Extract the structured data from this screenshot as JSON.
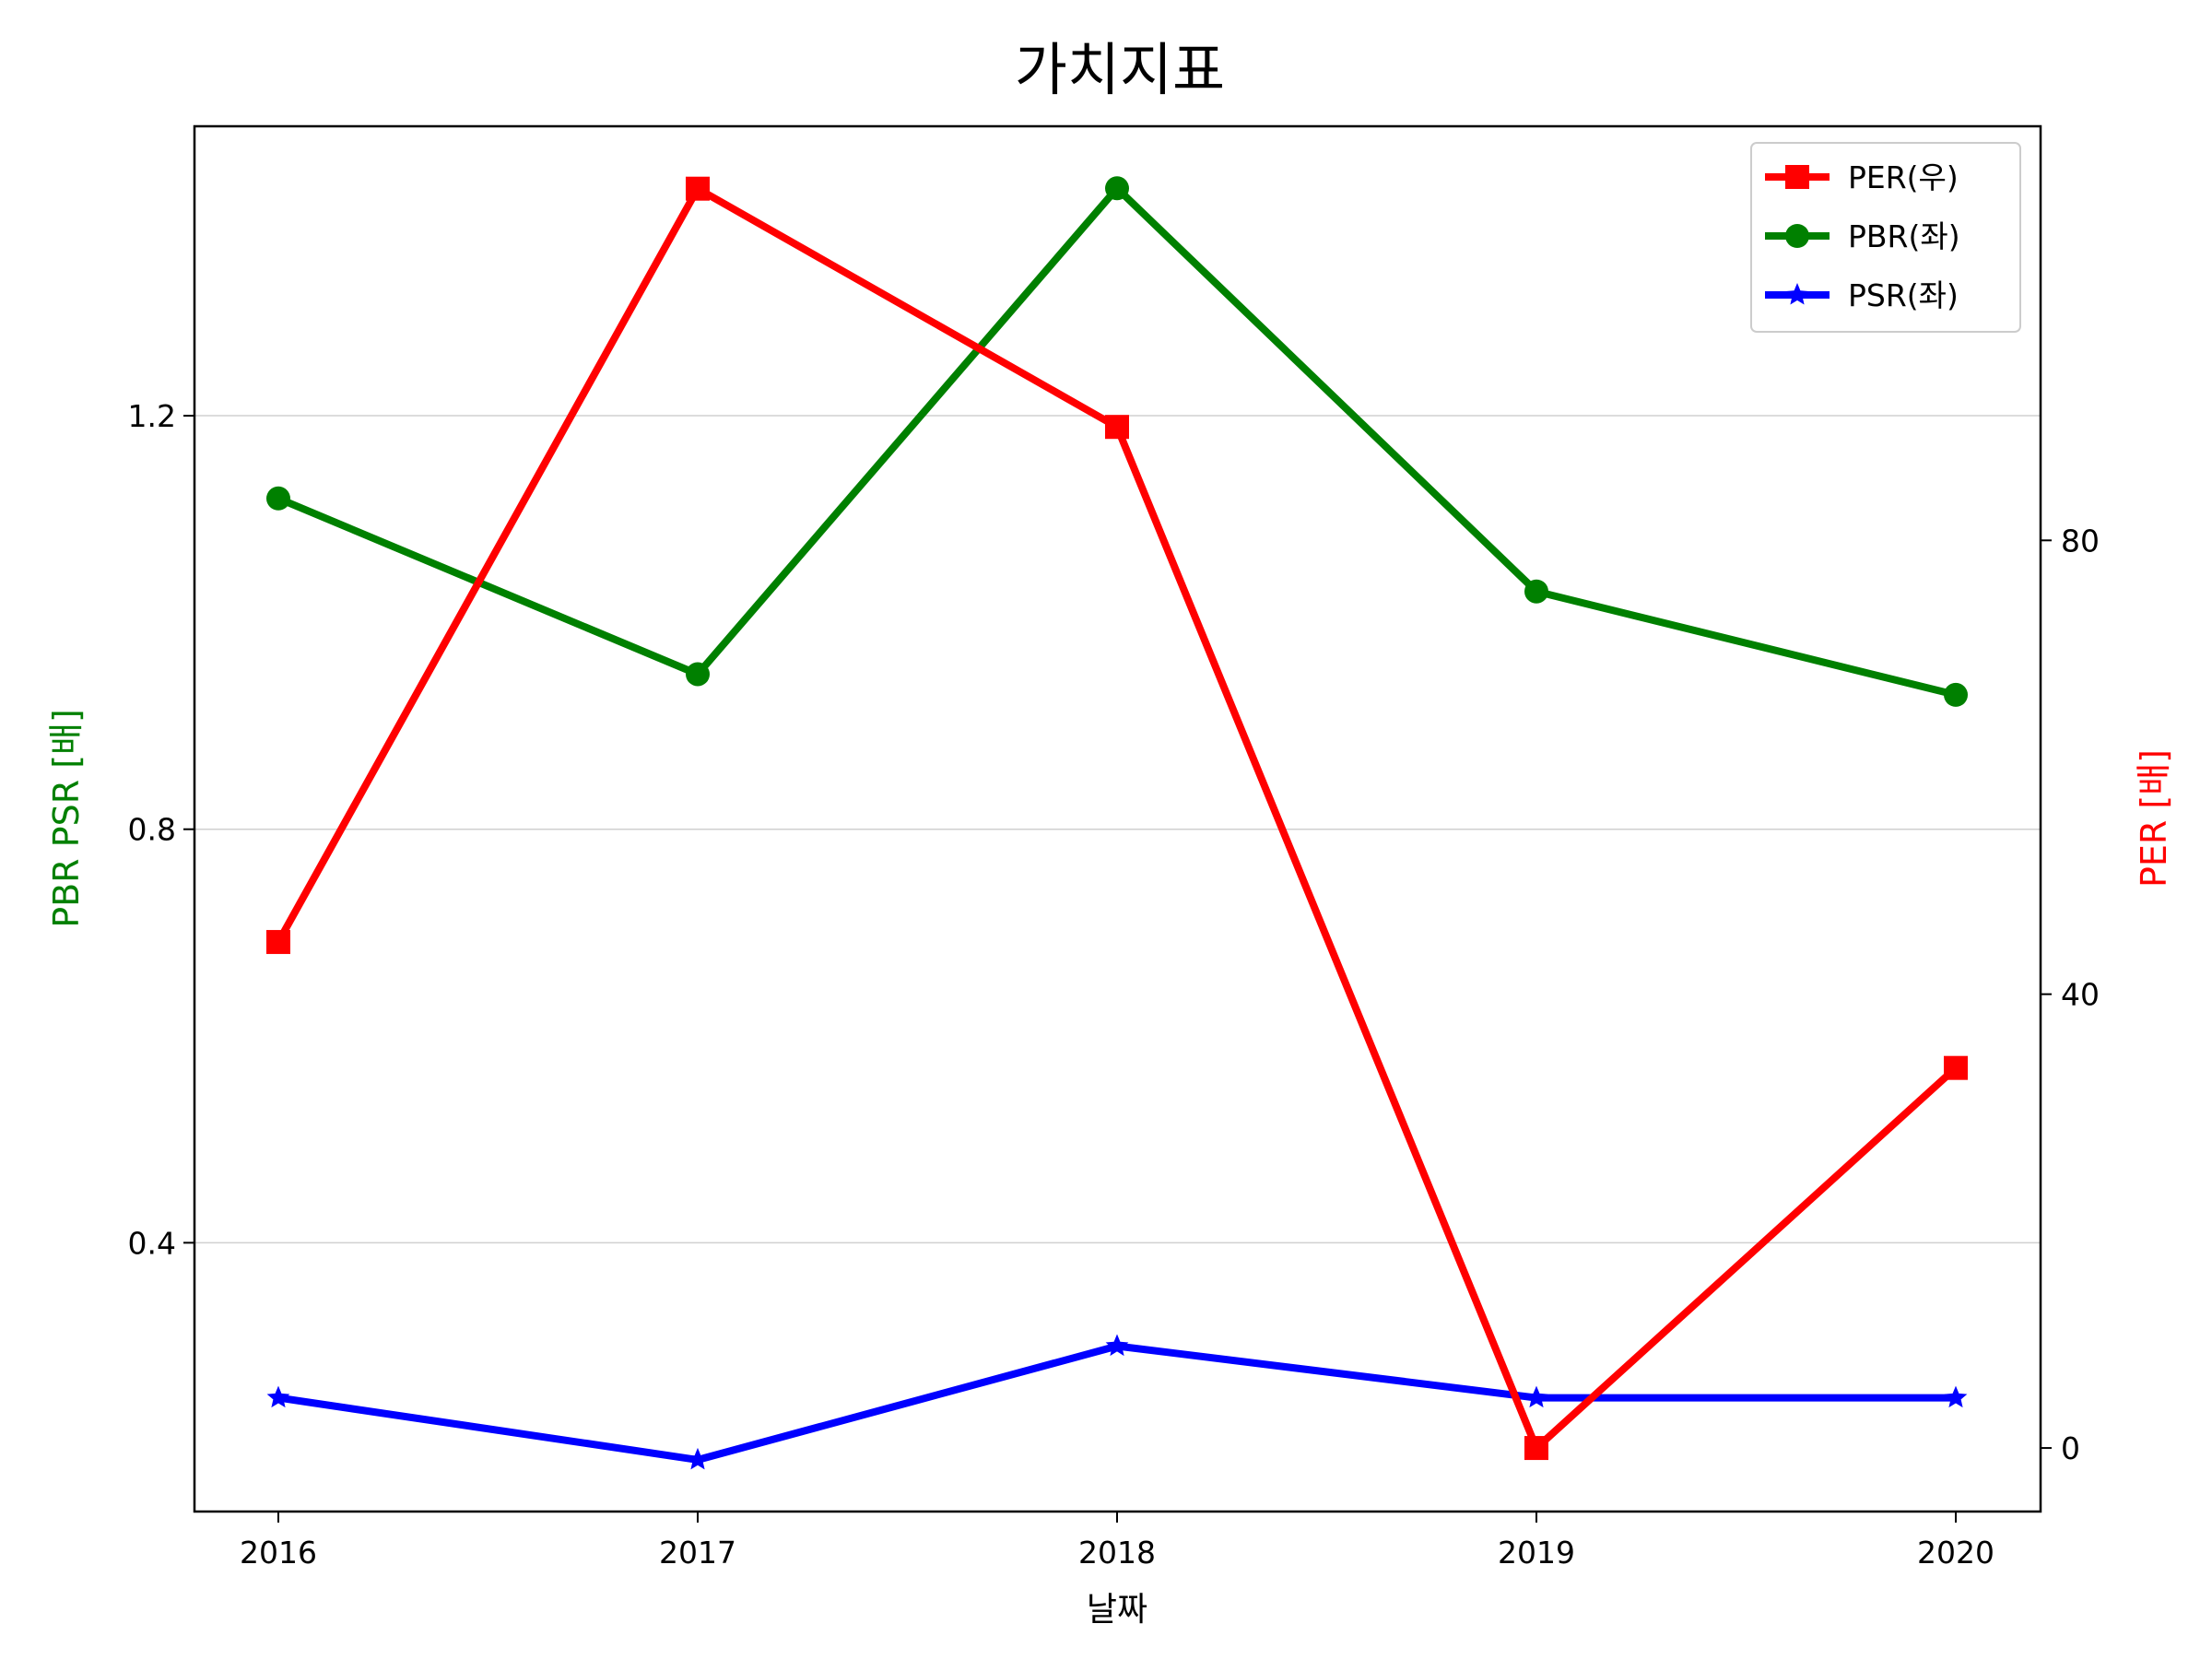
{
  "chart_data": {
    "type": "line",
    "title": "가치지표",
    "xlabel": "날짜",
    "ylabel_left": "PBR PSR [배]",
    "ylabel_right": "PER [배]",
    "categories": [
      "2016",
      "2017",
      "2018",
      "2019",
      "2020"
    ],
    "y_left": {
      "lim": [
        0.14,
        1.48
      ],
      "ticks": [
        0.4,
        0.8,
        1.2
      ],
      "tick_labels": [
        "0.4",
        "0.8",
        "1.2"
      ]
    },
    "y_right": {
      "lim": [
        -5.6,
        116.5
      ],
      "ticks": [
        0,
        40,
        80
      ],
      "tick_labels": [
        "0",
        "40",
        "80"
      ]
    },
    "grid": "horizontal (left axis)",
    "legend_position": "top-right",
    "series": [
      {
        "name": "PER(우)",
        "axis": "right",
        "color": "#ff0000",
        "marker": "square",
        "values": [
          44.6,
          111.0,
          90.0,
          0.0,
          33.5
        ]
      },
      {
        "name": "PBR(좌)",
        "axis": "left",
        "color": "#008000",
        "marker": "circle",
        "values": [
          1.12,
          0.95,
          1.42,
          1.03,
          0.93
        ]
      },
      {
        "name": "PSR(좌)",
        "axis": "left",
        "color": "#0000ff",
        "marker": "star",
        "values": [
          0.25,
          0.19,
          0.3,
          0.25,
          0.25
        ]
      }
    ]
  }
}
